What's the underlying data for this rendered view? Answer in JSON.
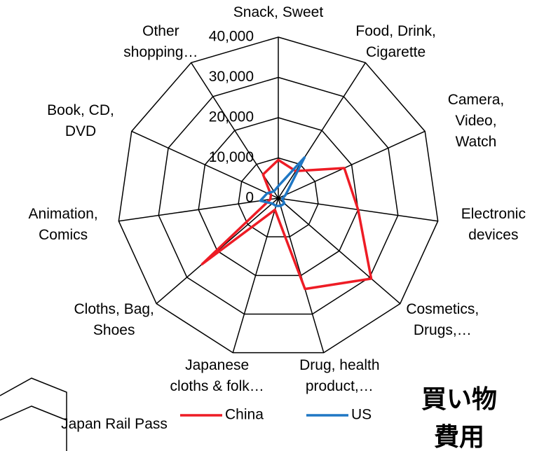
{
  "chart_data": {
    "type": "radar",
    "categories": [
      "Snack, Sweet",
      "Food, Drink,\nCigarette",
      "Camera,\nVideo, Watch",
      "Electronic\ndevices",
      "Cosmetics,\nDrugs,…",
      "Drug, health\nproduct,…",
      "Japanese\ncloths & folk…",
      "Cloths, Bag,\nShoes",
      "Animation,\nComics",
      "Book, CD,\nDVD",
      "Other\nshopping…"
    ],
    "series": [
      {
        "name": "China",
        "color": "#ee1c25",
        "values": [
          9500,
          8000,
          18000,
          20000,
          30500,
          23500,
          3000,
          25000,
          2000,
          2000,
          7000
        ]
      },
      {
        "name": "US",
        "color": "#1f77c4",
        "values": [
          3000,
          12000,
          2000,
          1000,
          2000,
          2000,
          2000,
          2000,
          4500,
          3000,
          2000
        ]
      }
    ],
    "ylim": [
      0,
      40000
    ],
    "yticks": [
      0,
      {
        "value": 10000,
        "label": "10,000"
      },
      {
        "value": 20000,
        "label": "20,000"
      },
      {
        "value": 30000,
        "label": "30,000"
      },
      {
        "value": 40000,
        "label": "40,000"
      }
    ],
    "grid": true,
    "annotations": [
      "Japan Rail Pass",
      "買い物\n費用"
    ]
  }
}
